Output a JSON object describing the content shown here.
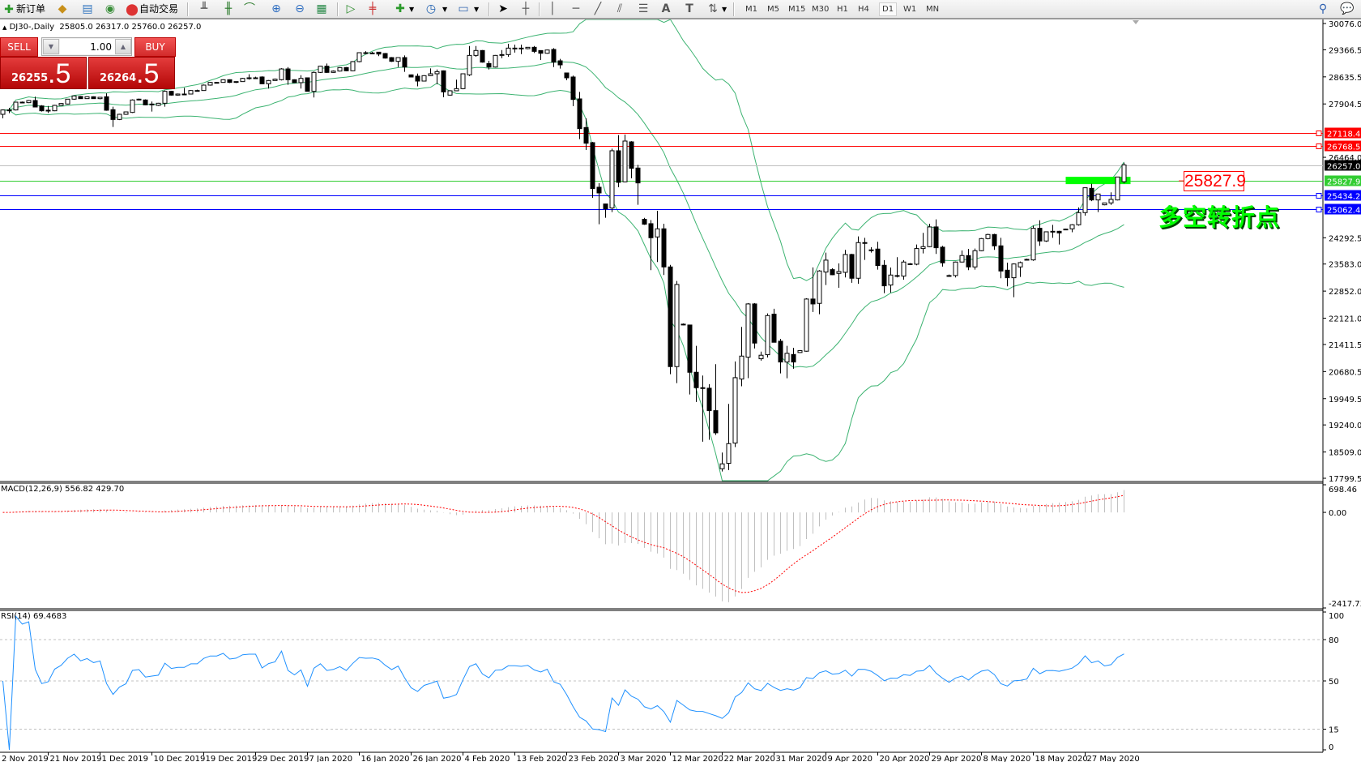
{
  "toolbar": {
    "new_order_label": "新订单",
    "auto_trading_label": "自动交易",
    "timeframes": [
      "M1",
      "M5",
      "M15",
      "M30",
      "H1",
      "H4",
      "D1",
      "W1",
      "MN"
    ],
    "active_timeframe": "D1"
  },
  "chart_header": {
    "symbol_period": "DJ30-,Daily",
    "ohlc": "25805.0 26317.0 25760.0 26257.0"
  },
  "trade_panel": {
    "sell_label": "SELL",
    "buy_label": "BUY",
    "lot_value": "1.00",
    "sell_price_main": "26255",
    "sell_price_frac": ".5",
    "buy_price_main": "26264",
    "buy_price_frac": ".5"
  },
  "annotations": {
    "price_box": "25827.9",
    "text": "多空转折点",
    "text_color": "#00ff00",
    "highlight_bar_color": "#00ff00"
  },
  "chart_data": {
    "type": "candlestick",
    "symbol": "DJ30-",
    "period": "Daily",
    "ylim": [
      17799.5,
      30076.0
    ],
    "y_ticks": [
      "30076.0",
      "29366.5",
      "28635.5",
      "27904.5",
      "26464.0",
      "24292.5",
      "23583.0",
      "22852.0",
      "22121.0",
      "21411.5",
      "20680.5",
      "19949.5",
      "19240.0",
      "18509.0",
      "17799.5"
    ],
    "x_ticks": [
      {
        "label": "2 Nov 2019",
        "bar": 1
      },
      {
        "label": "21 Nov 2019",
        "bar": 8
      },
      {
        "label": "1 Dec 2019",
        "bar": 16
      },
      {
        "label": "10 Dec 2019",
        "bar": 24
      },
      {
        "label": "19 Dec 2019",
        "bar": 32
      },
      {
        "label": "29 Dec 2019",
        "bar": 40
      },
      {
        "label": "7 Jan 2020",
        "bar": 48
      },
      {
        "label": "16 Jan 2020",
        "bar": 56
      },
      {
        "label": "26 Jan 2020",
        "bar": 64
      },
      {
        "label": "4 Feb 2020",
        "bar": 72
      },
      {
        "label": "13 Feb 2020",
        "bar": 80
      },
      {
        "label": "23 Feb 2020",
        "bar": 88
      },
      {
        "label": "3 Mar 2020",
        "bar": 96
      },
      {
        "label": "12 Mar 2020",
        "bar": 104
      },
      {
        "label": "22 Mar 2020",
        "bar": 112
      },
      {
        "label": "31 Mar 2020",
        "bar": 120
      },
      {
        "label": "9 Apr 2020",
        "bar": 128
      },
      {
        "label": "20 Apr 2020",
        "bar": 136
      },
      {
        "label": "29 Apr 2020",
        "bar": 144
      },
      {
        "label": "8 May 2020",
        "bar": 152
      },
      {
        "label": "18 May 2020",
        "bar": 160
      },
      {
        "label": "27 May 2020",
        "bar": 168
      }
    ],
    "candles_ohlc": [
      [
        27625,
        27757,
        27516,
        27742
      ],
      [
        27742,
        27800,
        27654,
        27735
      ],
      [
        27742,
        27960,
        27730,
        27953
      ],
      [
        27953,
        27970,
        27920,
        27939
      ],
      [
        27939,
        28010,
        27930,
        27997
      ],
      [
        27997,
        28100,
        27822,
        27822
      ],
      [
        27851,
        27870,
        27700,
        27720
      ],
      [
        27720,
        27850,
        27660,
        27735
      ],
      [
        27720,
        27880,
        27710,
        27866
      ],
      [
        27866,
        27930,
        27860,
        27917
      ],
      [
        27902,
        28040,
        27890,
        28034
      ],
      [
        28034,
        28130,
        28020,
        28121
      ],
      [
        28106,
        28120,
        28040,
        28048
      ],
      [
        28048,
        28110,
        28040,
        28099
      ],
      [
        28099,
        28110,
        28040,
        28048
      ],
      [
        28048,
        28090,
        28030,
        28084
      ],
      [
        28099,
        28190,
        27720,
        27735
      ],
      [
        27749,
        27830,
        27282,
        27486
      ],
      [
        27486,
        27640,
        27470,
        27625
      ],
      [
        27625,
        27700,
        27610,
        27690
      ],
      [
        27676,
        28030,
        27660,
        28012
      ],
      [
        28012,
        28050,
        28000,
        28034
      ],
      [
        28012,
        28030,
        27870,
        27880
      ],
      [
        27880,
        27970,
        27700,
        27902
      ],
      [
        27866,
        27935,
        27850,
        27924
      ],
      [
        27924,
        28270,
        27830,
        28245
      ],
      [
        28245,
        28260,
        28130,
        28143
      ],
      [
        28143,
        28185,
        28130,
        28172
      ],
      [
        28172,
        28340,
        28140,
        28172
      ],
      [
        28172,
        28280,
        28160,
        28267
      ],
      [
        28267,
        28290,
        28250,
        28267
      ],
      [
        28267,
        28430,
        28260,
        28413
      ],
      [
        28413,
        28500,
        28400,
        28486
      ],
      [
        28486,
        28500,
        28470,
        28486
      ],
      [
        28486,
        28570,
        28480,
        28559
      ],
      [
        28559,
        28570,
        28470,
        28486
      ],
      [
        28486,
        28510,
        28470,
        28508
      ],
      [
        28508,
        28610,
        28500,
        28595
      ],
      [
        28595,
        28705,
        28560,
        28610
      ],
      [
        28610,
        28640,
        28590,
        28610
      ],
      [
        28632,
        28650,
        28440,
        28449
      ],
      [
        28449,
        28550,
        28320,
        28537
      ],
      [
        28537,
        28590,
        28530,
        28573
      ],
      [
        28559,
        28870,
        28540,
        28850
      ],
      [
        28850,
        28900,
        28420,
        28559
      ],
      [
        28559,
        28570,
        28470,
        28479
      ],
      [
        28479,
        28680,
        28320,
        28595
      ],
      [
        28610,
        28620,
        28240,
        28245
      ],
      [
        28245,
        28780,
        28080,
        28756
      ],
      [
        28756,
        28930,
        28740,
        28923
      ],
      [
        28923,
        28995,
        28740,
        28756
      ],
      [
        28756,
        28810,
        28750,
        28792
      ],
      [
        28792,
        28900,
        28780,
        28887
      ],
      [
        28887,
        28900,
        28790,
        28800
      ],
      [
        28800,
        29060,
        28790,
        29047
      ],
      [
        29047,
        29300,
        29030,
        29288
      ],
      [
        29288,
        29330,
        29250,
        29273
      ],
      [
        29273,
        29310,
        29260,
        29280
      ],
      [
        29302,
        29310,
        29195,
        29251
      ],
      [
        29266,
        29280,
        29130,
        29142
      ],
      [
        29156,
        29170,
        29040,
        29055
      ],
      [
        29055,
        29160,
        28900,
        29156
      ],
      [
        29156,
        29215,
        28770,
        28901
      ],
      [
        28690,
        28700,
        28620,
        28632
      ],
      [
        28654,
        28725,
        28380,
        28522
      ],
      [
        28522,
        28680,
        28510,
        28668
      ],
      [
        28668,
        28865,
        28660,
        28719
      ],
      [
        28719,
        28835,
        28435,
        28777
      ],
      [
        28799,
        28810,
        28085,
        28230
      ],
      [
        28143,
        28275,
        28130,
        28260
      ],
      [
        28260,
        28560,
        28250,
        28318
      ],
      [
        28318,
        28730,
        28300,
        28719
      ],
      [
        28690,
        29470,
        28660,
        29215
      ],
      [
        29215,
        29470,
        29180,
        29347
      ],
      [
        29347,
        29360,
        29020,
        29033
      ],
      [
        28996,
        29070,
        28835,
        28901
      ],
      [
        28901,
        29225,
        28890,
        29215
      ],
      [
        29215,
        29360,
        29140,
        29237
      ],
      [
        29237,
        29530,
        29180,
        29412
      ],
      [
        29412,
        29505,
        29290,
        29412
      ],
      [
        29412,
        29505,
        29250,
        29397
      ],
      [
        29397,
        29440,
        29380,
        29434
      ],
      [
        29434,
        29470,
        29280,
        29324
      ],
      [
        29346,
        29350,
        29090,
        29273
      ],
      [
        29273,
        29370,
        29260,
        29361
      ],
      [
        29376,
        29410,
        28900,
        29033
      ],
      [
        29069,
        29120,
        28860,
        28960
      ],
      [
        28741,
        28750,
        28545,
        28610
      ],
      [
        28632,
        28670,
        27844,
        28026
      ],
      [
        28041,
        28230,
        26954,
        27238
      ],
      [
        27268,
        27515,
        26663,
        26845
      ],
      [
        26860,
        26880,
        25372,
        25620
      ],
      [
        25656,
        25766,
        24657,
        25503
      ],
      [
        25204,
        25210,
        24832,
        25073
      ],
      [
        25095,
        26699,
        24985,
        26641
      ],
      [
        26641,
        27064,
        25656,
        25788
      ],
      [
        25802,
        27078,
        25790,
        26903
      ],
      [
        26881,
        26900,
        25897,
        26167
      ],
      [
        26174,
        26260,
        25182,
        25773
      ],
      [
        24789,
        24830,
        24640,
        24658
      ],
      [
        24672,
        24770,
        23418,
        24293
      ],
      [
        24314,
        25022,
        23637,
        24534
      ],
      [
        24534,
        24672,
        23287,
        23505
      ],
      [
        23505,
        23560,
        20610,
        20814
      ],
      [
        20814,
        23126,
        20369,
        23031
      ],
      [
        21960,
        21980,
        21930,
        21945
      ],
      [
        21937,
        21945,
        20063,
        20661
      ],
      [
        20661,
        21376,
        19859,
        20245
      ],
      [
        20245,
        20573,
        18787,
        20231
      ],
      [
        20231,
        20340,
        18838,
        19625
      ],
      [
        19625,
        20880,
        18969,
        19027
      ],
      [
        18057,
        18495,
        17984,
        18189
      ],
      [
        18203,
        19808,
        18021,
        18735
      ],
      [
        18750,
        20953,
        18641,
        20515
      ],
      [
        20479,
        21886,
        20282,
        21098
      ],
      [
        21069,
        22528,
        20501,
        22506
      ],
      [
        22506,
        22530,
        21303,
        21449
      ],
      [
        21026,
        21220,
        20975,
        21121
      ],
      [
        21135,
        22250,
        21060,
        22192
      ],
      [
        22229,
        22375,
        21471,
        21471
      ],
      [
        21500,
        21560,
        20632,
        20938
      ],
      [
        20938,
        21375,
        20500,
        21172
      ],
      [
        21142,
        21320,
        20756,
        20938
      ],
      [
        21194,
        21260,
        21180,
        21245
      ],
      [
        21230,
        22660,
        21220,
        22638
      ],
      [
        22638,
        23491,
        22287,
        22506
      ],
      [
        22521,
        23418,
        22229,
        23396
      ],
      [
        23367,
        23892,
        23017,
        23688
      ],
      [
        23432,
        23470,
        23280,
        23294
      ],
      [
        23330,
        23600,
        22943,
        23381
      ],
      [
        23359,
        23965,
        23221,
        23841
      ],
      [
        23841,
        23860,
        23075,
        23199
      ],
      [
        23199,
        24330,
        23050,
        24162
      ],
      [
        24162,
        24290,
        23695,
        24147
      ],
      [
        23960,
        24040,
        23890,
        23965
      ],
      [
        23987,
        24185,
        23432,
        23542
      ],
      [
        23549,
        23690,
        22798,
        22995
      ],
      [
        23016,
        23490,
        22812,
        23286
      ],
      [
        23272,
        23768,
        23221,
        23272
      ],
      [
        23257,
        23690,
        23162,
        23637
      ],
      [
        23590,
        23610,
        23560,
        23578
      ],
      [
        23578,
        24110,
        23549,
        24001
      ],
      [
        24001,
        24424,
        23870,
        24052
      ],
      [
        24052,
        24672,
        24040,
        24585
      ],
      [
        24585,
        24789,
        23855,
        24023
      ],
      [
        24038,
        24075,
        23513,
        23615
      ],
      [
        23272,
        23300,
        23240,
        23272
      ],
      [
        23272,
        23650,
        23220,
        23637
      ],
      [
        23637,
        23950,
        23630,
        23812
      ],
      [
        23812,
        23990,
        23418,
        23505
      ],
      [
        23505,
        24000,
        23432,
        23942
      ],
      [
        23942,
        24285,
        23930,
        24270
      ],
      [
        24270,
        24400,
        24250,
        24380
      ],
      [
        24380,
        24400,
        23965,
        24074
      ],
      [
        24074,
        24290,
        23198,
        23395
      ],
      [
        23417,
        23620,
        22980,
        23213
      ],
      [
        23213,
        23600,
        22688,
        23585
      ],
      [
        23505,
        23650,
        23235,
        23622
      ],
      [
        23709,
        23730,
        23690,
        23709
      ],
      [
        23694,
        24620,
        23670,
        24548
      ],
      [
        24548,
        24765,
        24074,
        24205
      ],
      [
        24205,
        24460,
        24180,
        24453
      ],
      [
        24467,
        24640,
        24290,
        24467
      ],
      [
        24467,
        24480,
        24110,
        24424
      ],
      [
        24510,
        24540,
        24500,
        24526
      ],
      [
        24533,
        24660,
        24440,
        24643
      ],
      [
        24643,
        25110,
        24620,
        24971
      ],
      [
        24971,
        25642,
        24890,
        25642
      ],
      [
        25627,
        25751,
        25280,
        25313
      ],
      [
        25313,
        25480,
        24985,
        25474
      ],
      [
        25182,
        25240,
        25170,
        25233
      ],
      [
        25233,
        25520,
        25180,
        25328
      ],
      [
        25313,
        25940,
        25300,
        25933
      ],
      [
        25805,
        26317,
        25760,
        26257
      ]
    ],
    "bollinger": {
      "period": 20,
      "deviation": 2,
      "color": "#3cb371"
    },
    "horizontal_lines": [
      {
        "price": 27118.4,
        "label": "27118.4",
        "color": "#ff0000"
      },
      {
        "price": 26768.5,
        "label": "26768.5",
        "color": "#ff0000"
      },
      {
        "price": 26257.0,
        "label": "26257.0",
        "color": "#c0c0c0",
        "tag_color": "#000000"
      },
      {
        "price": 25827.9,
        "label": "25827.9",
        "color": "#32cd32"
      },
      {
        "price": 25434.2,
        "label": "25434.2",
        "color": "#0000ff"
      },
      {
        "price": 25062.4,
        "label": "25062.4",
        "color": "#0000ff"
      }
    ],
    "highlight_zone": {
      "price": 25827.9,
      "from_bar": 165,
      "to_bar": 175
    },
    "macd": {
      "title": "MACD(12,26,9) 556.82 429.70",
      "params": [
        12,
        26,
        9
      ],
      "ylim": [
        -2417.73,
        698.46
      ],
      "y_ticks": [
        "698.46",
        "0.00",
        "-2417.73"
      ],
      "hist_color": "#c0c0c0",
      "signal_color": "#ff0000"
    },
    "rsi": {
      "title": "RSI(14) 69.4683",
      "period": 14,
      "ylim": [
        0,
        100
      ],
      "levels": [
        80,
        50,
        15
      ],
      "y_ticks": [
        "100",
        "80",
        "50",
        "15",
        "0"
      ],
      "color": "#1e90ff"
    }
  }
}
